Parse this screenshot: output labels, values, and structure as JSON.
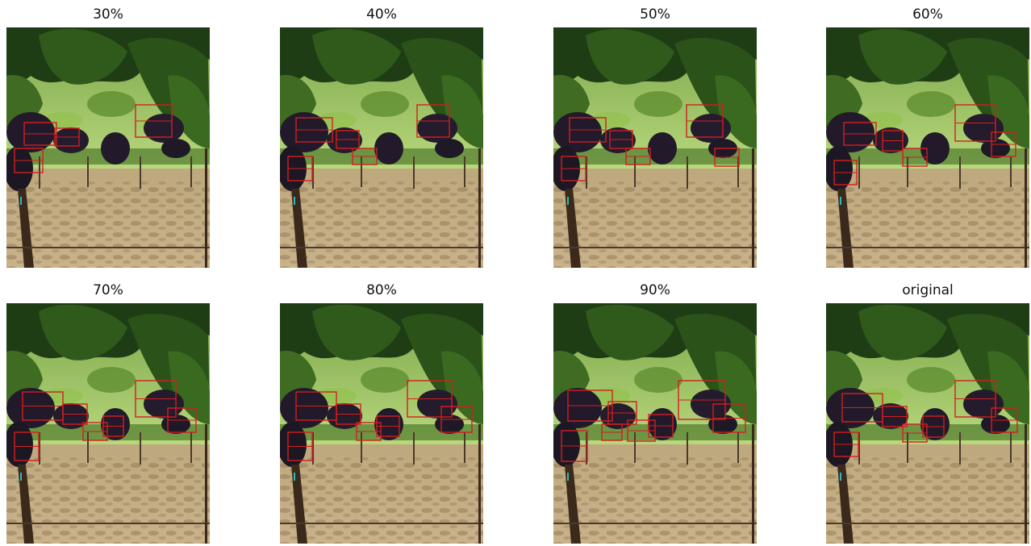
{
  "panels": [
    {
      "title": "30%"
    },
    {
      "title": "40%"
    },
    {
      "title": "50%"
    },
    {
      "title": "60%"
    },
    {
      "title": "70%"
    },
    {
      "title": "80%"
    },
    {
      "title": "90%"
    },
    {
      "title": "original"
    }
  ],
  "colors": {
    "background": "#ffffff",
    "box_outline": "#d11f1f",
    "leaf_dark": "#1f3d14",
    "leaf_mid": "#3f6b22",
    "leaf_light": "#8fc24a",
    "grape": "#221a2a",
    "ground": "#c9b98f",
    "trunk": "#3b2a1c"
  },
  "icons": [
    "vineyard-photo"
  ]
}
